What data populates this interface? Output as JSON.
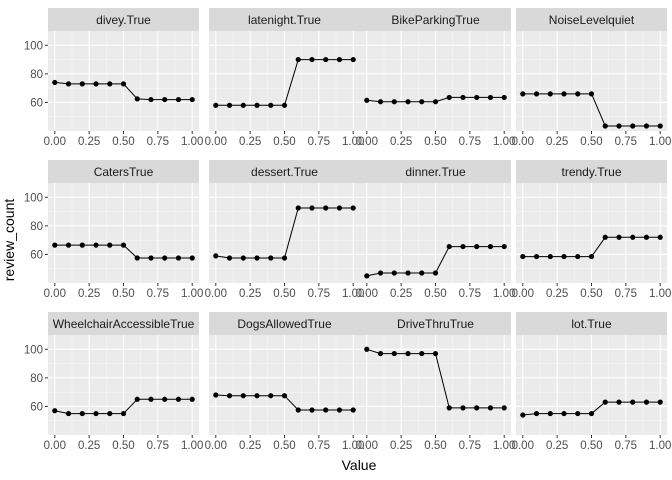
{
  "chart_data": {
    "type": "line",
    "xlabel": "Value",
    "ylabel": "review_count",
    "xlim": [
      0,
      1
    ],
    "ylim": [
      40,
      110
    ],
    "x_ticks": [
      0,
      0.25,
      0.5,
      0.75,
      1
    ],
    "x_tick_labels": [
      "0.00",
      "0.25",
      "0.50",
      "0.75",
      "1.00"
    ],
    "y_ticks": [
      60,
      80,
      100
    ],
    "y_tick_labels": [
      "60",
      "80",
      "100"
    ],
    "grid": true,
    "x": [
      0,
      0.1,
      0.2,
      0.3,
      0.4,
      0.5,
      0.6,
      0.7,
      0.8,
      0.9,
      1.0
    ],
    "panels": [
      {
        "name": "divey.True",
        "values": [
          74,
          73,
          73,
          73,
          73,
          73,
          62.5,
          62,
          62,
          62,
          62
        ]
      },
      {
        "name": "latenight.True",
        "values": [
          58,
          58,
          58,
          58,
          58,
          58,
          90,
          90,
          90,
          90,
          90
        ]
      },
      {
        "name": "BikeParkingTrue",
        "values": [
          61.5,
          60.5,
          60.5,
          60.5,
          60.5,
          60.5,
          63.5,
          63.5,
          63.5,
          63.5,
          63.5
        ]
      },
      {
        "name": "NoiseLevelquiet",
        "values": [
          66,
          66,
          66,
          66,
          66,
          66,
          43.5,
          43.5,
          43.5,
          43.5,
          43.5
        ]
      },
      {
        "name": "CatersTrue",
        "values": [
          66.5,
          66.5,
          66.5,
          66.5,
          66.5,
          66.5,
          57.5,
          57.5,
          57.5,
          57.5,
          57.5
        ]
      },
      {
        "name": "dessert.True",
        "values": [
          59,
          57.5,
          57.5,
          57.5,
          57.5,
          57.5,
          92.5,
          92.5,
          92.5,
          92.5,
          92.5
        ]
      },
      {
        "name": "dinner.True",
        "values": [
          45,
          47,
          47,
          47,
          47,
          47,
          65.5,
          65.5,
          65.5,
          65.5,
          65.5
        ]
      },
      {
        "name": "trendy.True",
        "values": [
          58.5,
          58.5,
          58.5,
          58.5,
          58.5,
          58.5,
          72,
          72,
          72,
          72,
          72
        ]
      },
      {
        "name": "WheelchairAccessibleTrue",
        "values": [
          57,
          55,
          55,
          55,
          55,
          55,
          65,
          65,
          65,
          65,
          65
        ]
      },
      {
        "name": "DogsAllowedTrue",
        "values": [
          68,
          67.5,
          67.5,
          67.5,
          67.5,
          67.5,
          57.5,
          57.5,
          57.5,
          57.5,
          57.5
        ]
      },
      {
        "name": "DriveThruTrue",
        "values": [
          100,
          97,
          97,
          97,
          97,
          97,
          59,
          59,
          59,
          59,
          59
        ]
      },
      {
        "name": "lot.True",
        "values": [
          54,
          55,
          55,
          55,
          55,
          55,
          63,
          63,
          63,
          63,
          63
        ]
      }
    ]
  },
  "colors": {
    "panel_bg": "#ebebeb",
    "strip_bg": "#d9d9d9",
    "grid_major": "#ffffff",
    "grid_minor": "#f5f5f5",
    "line": "#000000",
    "tick_text": "#4d4d4d"
  }
}
